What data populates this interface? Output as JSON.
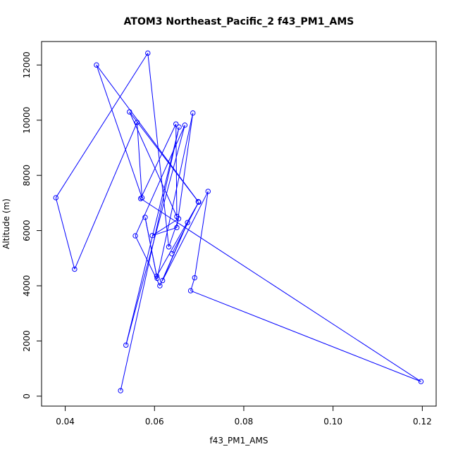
{
  "chart_data": {
    "type": "line",
    "title": "ATOM3 Northeast_Pacific_2 f43_PM1_AMS",
    "xlabel": "f43_PM1_AMS",
    "ylabel": "Altitude (m)",
    "xlim": [
      0.0347,
      0.1231
    ],
    "ylim": [
      -360,
      12850
    ],
    "xticks": [
      0.04,
      0.06,
      0.08,
      0.1,
      0.12
    ],
    "xtick_labels": [
      "0.04",
      "0.06",
      "0.08",
      "0.10",
      "0.12"
    ],
    "yticks": [
      0,
      2000,
      4000,
      6000,
      8000,
      10000,
      12000
    ],
    "ytick_labels": [
      "0",
      "2000",
      "4000",
      "6000",
      "8000",
      "10000",
      "12000"
    ],
    "grid": false,
    "series_color": "#0000ff",
    "series": [
      {
        "markers": "open-circle",
        "points": [
          [
            0.0524,
            200
          ],
          [
            0.0655,
            9750
          ],
          [
            0.0536,
            1850
          ],
          [
            0.0668,
            9820
          ],
          [
            0.0557,
            5810
          ],
          [
            0.0612,
            4000
          ],
          [
            0.0674,
            6290
          ],
          [
            0.0618,
            4190
          ],
          [
            0.072,
            7420
          ],
          [
            0.069,
            4290
          ],
          [
            0.0681,
            3820
          ],
          [
            0.1197,
            530
          ],
          [
            0.0569,
            7160
          ],
          [
            0.0648,
            9860
          ],
          [
            0.065,
            6510
          ],
          [
            0.0544,
            10300
          ],
          [
            0.0698,
            7050
          ],
          [
            0.047,
            12000
          ],
          [
            0.0572,
            7190
          ],
          [
            0.0561,
            9920
          ],
          [
            0.0421,
            4600
          ],
          [
            0.0379,
            7190
          ],
          [
            0.0585,
            12430
          ],
          [
            0.0632,
            5410
          ],
          [
            0.0654,
            6430
          ],
          [
            0.0595,
            5820
          ],
          [
            0.065,
            6110
          ],
          [
            0.0686,
            10260
          ],
          [
            0.0606,
            4270
          ],
          [
            0.0579,
            6480
          ],
          [
            0.0605,
            4350
          ],
          [
            0.0699,
            7030
          ],
          [
            0.0639,
            5160
          ]
        ]
      }
    ]
  }
}
